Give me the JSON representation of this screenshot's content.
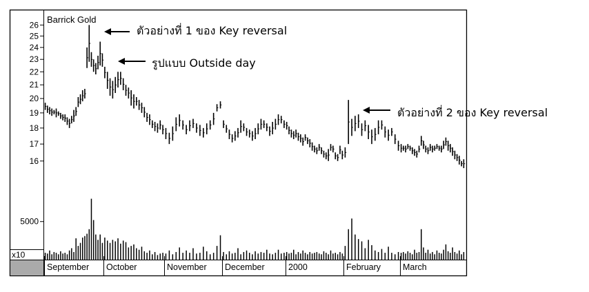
{
  "chart_data": {
    "type": "ohlc-with-volume",
    "title": "Barrick Gold",
    "price_axis": {
      "ticks": [
        16,
        17,
        18,
        19,
        20,
        21,
        22,
        23,
        24,
        25,
        26
      ],
      "scale": "log",
      "ylim": [
        15.3,
        26.8
      ]
    },
    "volume_axis": {
      "tick_label": "5000",
      "multiplier_label": "x10",
      "ylim": [
        0,
        9500
      ]
    },
    "x_labels": [
      "September",
      "October",
      "November",
      "December",
      "2000",
      "February",
      "March"
    ],
    "price_series": [
      {
        "month": "September",
        "points": [
          [
            19.2,
            19.7
          ],
          [
            19.0,
            19.5
          ],
          [
            18.9,
            19.4
          ],
          [
            18.8,
            19.3
          ],
          [
            18.9,
            19.2
          ],
          [
            18.7,
            19.3
          ],
          [
            18.8,
            19.1
          ],
          [
            18.6,
            19.0
          ],
          [
            18.5,
            18.9
          ],
          [
            18.4,
            18.9
          ],
          [
            18.2,
            18.7
          ],
          [
            18.0,
            18.6
          ],
          [
            18.3,
            18.8
          ],
          [
            18.4,
            19.2
          ],
          [
            18.8,
            19.4
          ],
          [
            19.4,
            20.1
          ],
          [
            19.6,
            20.3
          ],
          [
            19.8,
            20.6
          ],
          [
            20.0,
            20.7
          ],
          [
            22.3,
            24.0
          ],
          [
            22.8,
            26.0
          ],
          [
            22.4,
            23.6
          ],
          [
            22.0,
            23.0
          ],
          [
            21.8,
            22.7
          ],
          [
            22.2,
            23.3
          ],
          [
            22.5,
            24.5
          ],
          [
            22.4,
            23.5
          ]
        ]
      },
      {
        "month": "October",
        "points": [
          [
            21.5,
            22.4
          ],
          [
            20.7,
            22.0
          ],
          [
            20.2,
            21.5
          ],
          [
            20.0,
            21.3
          ],
          [
            20.4,
            21.6
          ],
          [
            20.8,
            22.0
          ],
          [
            21.0,
            22.0
          ],
          [
            20.6,
            21.5
          ],
          [
            20.2,
            21.0
          ],
          [
            20.0,
            20.8
          ],
          [
            19.5,
            20.6
          ],
          [
            19.3,
            20.3
          ],
          [
            19.5,
            20.1
          ],
          [
            19.2,
            19.9
          ],
          [
            19.0,
            19.7
          ],
          [
            18.7,
            19.4
          ],
          [
            18.4,
            19.0
          ],
          [
            18.2,
            18.9
          ],
          [
            18.0,
            18.5
          ],
          [
            17.8,
            18.4
          ],
          [
            17.7,
            18.3
          ],
          [
            17.9,
            18.5
          ],
          [
            17.6,
            18.2
          ]
        ]
      },
      {
        "month": "November",
        "points": [
          [
            17.3,
            18.0
          ],
          [
            17.0,
            17.7
          ],
          [
            17.2,
            18.1
          ],
          [
            17.8,
            18.7
          ],
          [
            18.1,
            18.9
          ],
          [
            17.9,
            18.5
          ],
          [
            17.6,
            18.2
          ],
          [
            17.8,
            18.5
          ],
          [
            18.0,
            18.6
          ],
          [
            17.7,
            18.3
          ],
          [
            17.5,
            18.2
          ],
          [
            17.4,
            18.0
          ],
          [
            17.6,
            18.3
          ],
          [
            17.9,
            18.5
          ],
          [
            18.2,
            19.0
          ],
          [
            19.1,
            19.6
          ],
          [
            19.3,
            19.8
          ]
        ]
      },
      {
        "month": "December",
        "points": [
          [
            18.0,
            18.5
          ],
          [
            17.7,
            18.2
          ],
          [
            17.3,
            17.9
          ],
          [
            17.1,
            17.6
          ],
          [
            17.2,
            17.8
          ],
          [
            17.4,
            18.0
          ],
          [
            17.7,
            18.5
          ],
          [
            17.8,
            18.3
          ],
          [
            17.5,
            18.0
          ],
          [
            17.4,
            17.9
          ],
          [
            17.2,
            17.8
          ],
          [
            17.3,
            18.0
          ],
          [
            17.6,
            18.3
          ],
          [
            17.9,
            18.6
          ],
          [
            18.0,
            18.5
          ],
          [
            17.8,
            18.3
          ],
          [
            17.5,
            18.1
          ],
          [
            17.6,
            18.4
          ],
          [
            17.9,
            18.6
          ],
          [
            18.2,
            18.9
          ],
          [
            18.3,
            18.8
          ],
          [
            18.0,
            18.5
          ]
        ]
      },
      {
        "month": "2000",
        "points": [
          [
            17.9,
            18.4
          ],
          [
            17.6,
            18.1
          ],
          [
            17.4,
            17.9
          ],
          [
            17.3,
            17.8
          ],
          [
            17.4,
            17.9
          ],
          [
            17.2,
            17.7
          ],
          [
            17.1,
            17.6
          ],
          [
            16.9,
            17.4
          ],
          [
            17.2,
            17.6
          ],
          [
            17.0,
            17.4
          ],
          [
            16.8,
            17.3
          ],
          [
            16.6,
            17.1
          ],
          [
            16.5,
            16.9
          ],
          [
            16.4,
            16.8
          ],
          [
            16.6,
            17.0
          ],
          [
            16.4,
            16.8
          ],
          [
            16.2,
            16.6
          ],
          [
            16.1,
            16.5
          ],
          [
            16.0,
            16.7
          ],
          [
            16.6,
            17.0
          ],
          [
            16.5,
            16.9
          ],
          [
            16.1,
            16.5
          ],
          [
            16.0,
            16.4
          ],
          [
            16.4,
            16.9
          ],
          [
            16.1,
            16.6
          ]
        ]
      },
      {
        "month": "February",
        "points": [
          [
            16.2,
            16.8
          ],
          [
            17.0,
            19.9
          ],
          [
            17.5,
            18.6
          ],
          [
            17.8,
            18.8
          ],
          [
            18.0,
            18.9
          ],
          [
            17.5,
            18.3
          ],
          [
            17.8,
            18.5
          ],
          [
            17.3,
            18.2
          ],
          [
            17.0,
            17.9
          ],
          [
            17.2,
            18.0
          ],
          [
            17.6,
            18.5
          ],
          [
            17.9,
            18.5
          ],
          [
            17.4,
            18.1
          ],
          [
            17.2,
            17.9
          ],
          [
            17.5,
            18.0
          ],
          [
            17.0,
            17.6
          ],
          [
            16.6,
            17.2
          ]
        ]
      },
      {
        "month": "March",
        "points": [
          [
            16.5,
            17.0
          ],
          [
            16.6,
            16.9
          ],
          [
            16.5,
            16.9
          ],
          [
            16.7,
            17.0
          ],
          [
            16.6,
            16.9
          ],
          [
            16.4,
            16.8
          ],
          [
            16.3,
            16.7
          ],
          [
            16.2,
            16.6
          ],
          [
            16.5,
            16.9
          ],
          [
            16.9,
            17.5
          ],
          [
            16.7,
            17.2
          ],
          [
            16.5,
            16.9
          ],
          [
            16.4,
            16.8
          ],
          [
            16.6,
            17.0
          ],
          [
            16.5,
            16.9
          ],
          [
            16.6,
            16.9
          ],
          [
            16.7,
            17.0
          ],
          [
            16.6,
            16.9
          ],
          [
            16.5,
            16.9
          ],
          [
            16.7,
            17.2
          ],
          [
            16.9,
            17.4
          ],
          [
            16.6,
            17.2
          ],
          [
            16.5,
            17.0
          ],
          [
            16.3,
            16.8
          ],
          [
            16.1,
            16.6
          ],
          [
            16.0,
            16.4
          ],
          [
            15.8,
            16.3
          ],
          [
            15.7,
            16.0
          ],
          [
            15.6,
            16.1
          ]
        ]
      }
    ],
    "volume_series": [
      {
        "month": "September",
        "values": [
          900,
          800,
          1200,
          700,
          1000,
          900,
          700,
          1100,
          800,
          900,
          700,
          1200,
          1500,
          1000,
          2800,
          1800,
          2200,
          2900,
          3100,
          3400,
          4000,
          8000,
          5200,
          3300,
          2600,
          3300,
          2200
        ]
      },
      {
        "month": "October",
        "values": [
          2900,
          2500,
          2200,
          2600,
          2400,
          2800,
          2100,
          2500,
          2300,
          1600,
          1800,
          2000,
          1500,
          1300,
          1700,
          1100,
          900,
          1200,
          700,
          1000,
          600,
          800,
          900
        ]
      },
      {
        "month": "November",
        "values": [
          800,
          1200,
          700,
          1000,
          1600,
          900,
          1200,
          900,
          1500,
          800,
          900,
          1700,
          1100,
          700,
          900,
          1800,
          3200
        ]
      },
      {
        "month": "December",
        "values": [
          1000,
          700,
          1100,
          800,
          900,
          1500,
          700,
          1000,
          1200,
          900,
          700,
          1100,
          800,
          1000,
          900,
          1300,
          800,
          700,
          900,
          1300,
          800,
          900
        ]
      },
      {
        "month": "2000",
        "values": [
          1000,
          800,
          900,
          1300,
          700,
          1000,
          800,
          1200,
          900,
          700,
          1000,
          800,
          900,
          1000,
          800,
          700,
          1100,
          900,
          700,
          1200,
          800,
          900,
          700,
          1000,
          800
        ]
      },
      {
        "month": "February",
        "values": [
          1800,
          4000,
          5400,
          3300,
          2700,
          2400,
          1500,
          2600,
          1900,
          1200,
          1000,
          1400,
          900,
          1700,
          900,
          700,
          1000
        ]
      },
      {
        "month": "March",
        "values": [
          900,
          1000,
          800,
          1100,
          900,
          700,
          1300,
          900,
          1000,
          4000,
          1600,
          900,
          1300,
          800,
          1000,
          700,
          1200,
          900,
          800,
          1300,
          2000,
          1100,
          900,
          1600,
          1000,
          800,
          1200,
          700,
          1000
        ]
      }
    ]
  },
  "annotations": [
    {
      "text": "ตัวอย่างที่ 1 ของ Key reversal",
      "target_date": "late September",
      "target_value": 26.0
    },
    {
      "text": "รูปแบบ Outside day",
      "target_date": "late September",
      "target_value": 23.0
    },
    {
      "text": "ตัวอย่างที่ 2 ของ Key reversal",
      "target_date": "early February",
      "target_value": 19.8
    }
  ]
}
